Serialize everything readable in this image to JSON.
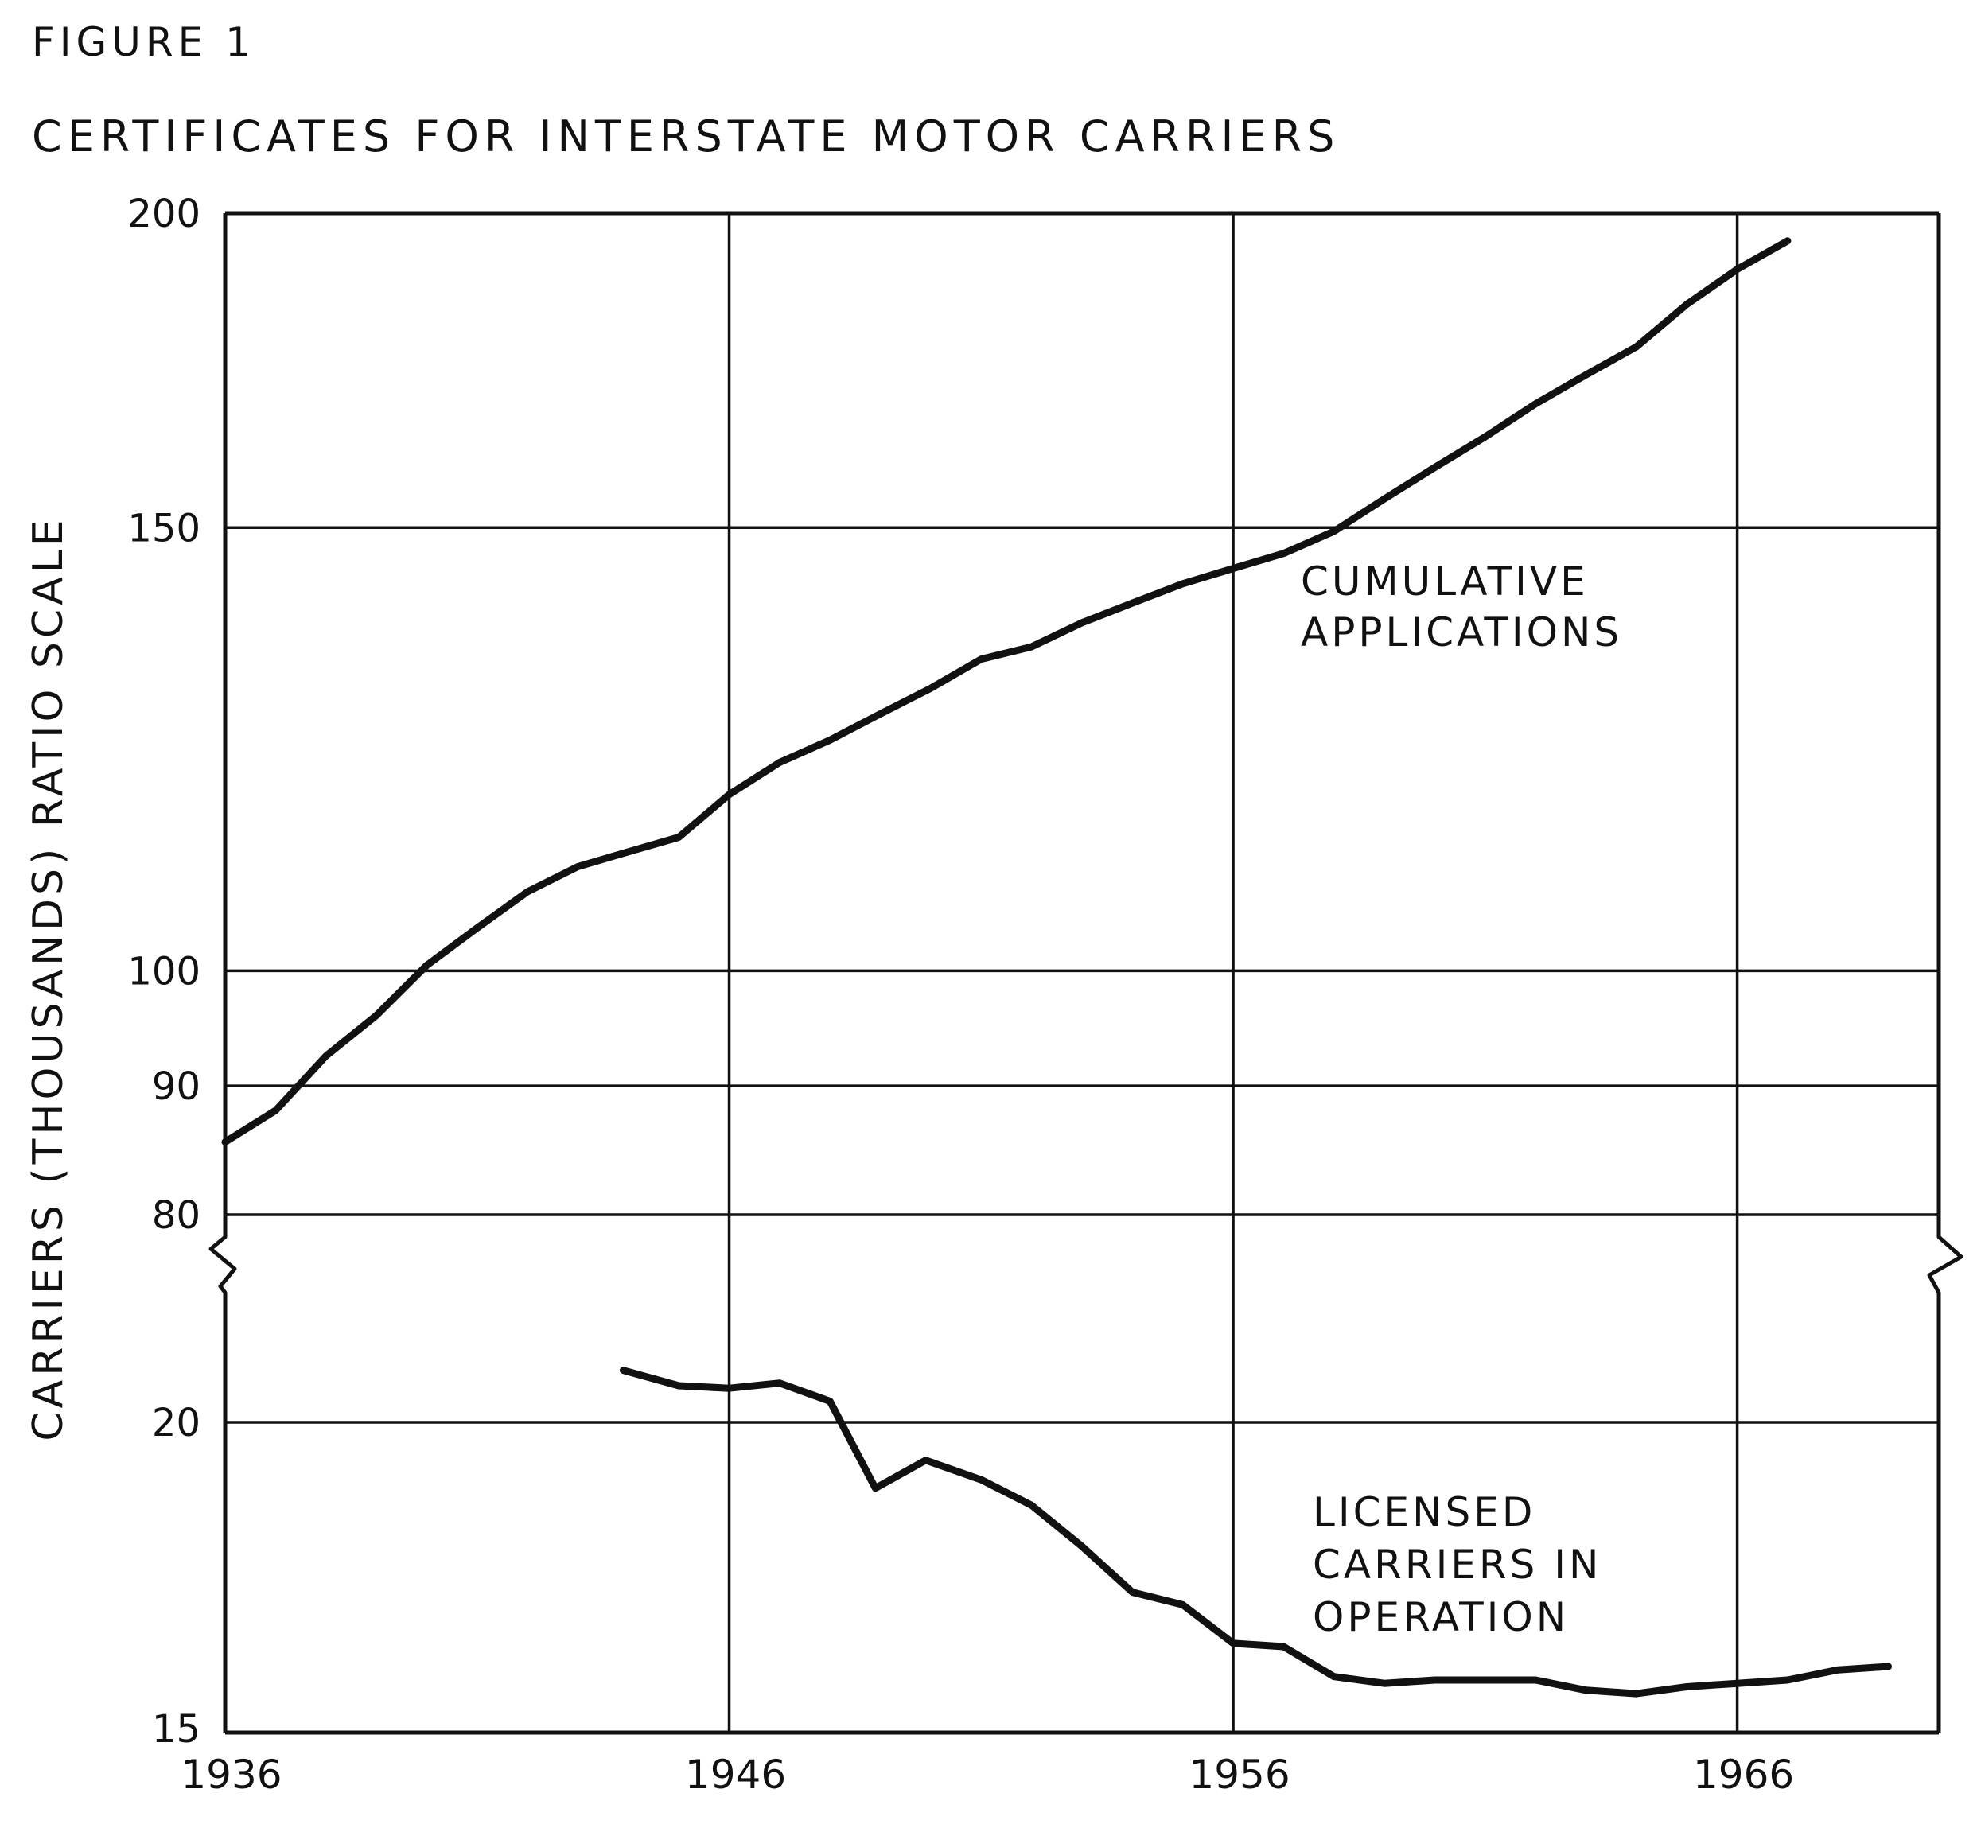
{
  "figure_label": "FIGURE 1",
  "title": "CERTIFICATES FOR INTERSTATE MOTOR CARRIERS",
  "chart_data": {
    "type": "line",
    "title": "CERTIFICATES FOR INTERSTATE MOTOR CARRIERS",
    "xlabel": "",
    "ylabel": "CARRIERS (THOUSANDS) RATIO SCALE",
    "y_scale": "log (ratio), broken axis between 80 and 20",
    "xlim": [
      1936,
      1970
    ],
    "x_ticks": [
      "1936",
      "1946",
      "1956",
      "1966"
    ],
    "y_ticks_upper": [
      "200",
      "150",
      "100",
      "90",
      "80"
    ],
    "y_ticks_lower": [
      "20",
      "15"
    ],
    "grid": true,
    "series": [
      {
        "name": "CUMULATIVE APPLICATIONS",
        "label_lines": [
          "CUMULATIVE",
          "APPLICATIONS"
        ],
        "panel": "upper",
        "points": [
          [
            1936,
            85.5
          ],
          [
            1937,
            88
          ],
          [
            1938,
            92.5
          ],
          [
            1939,
            96
          ],
          [
            1940,
            100.5
          ],
          [
            1941,
            104
          ],
          [
            1942,
            107.5
          ],
          [
            1943,
            110
          ],
          [
            1944,
            111.5
          ],
          [
            1945,
            113
          ],
          [
            1946,
            117.5
          ],
          [
            1947,
            121
          ],
          [
            1948,
            123.5
          ],
          [
            1949,
            126.5
          ],
          [
            1950,
            129.5
          ],
          [
            1951,
            133
          ],
          [
            1952,
            134.5
          ],
          [
            1953,
            137.5
          ],
          [
            1954,
            140
          ],
          [
            1955,
            142.5
          ],
          [
            1956,
            144.5
          ],
          [
            1957,
            146.5
          ],
          [
            1958,
            149.5
          ],
          [
            1959,
            154
          ],
          [
            1960,
            158.5
          ],
          [
            1961,
            163
          ],
          [
            1962,
            168
          ],
          [
            1963,
            172.5
          ],
          [
            1964,
            177
          ],
          [
            1965,
            184
          ],
          [
            1966,
            190
          ],
          [
            1967,
            195
          ]
        ]
      },
      {
        "name": "LICENSED CARRIERS IN OPERATION",
        "label_lines": [
          "LICENSED",
          "CARRIERS IN",
          "OPERATION"
        ],
        "panel": "lower",
        "points": [
          [
            1943.9,
            21.0
          ],
          [
            1945,
            20.7
          ],
          [
            1946,
            20.65
          ],
          [
            1947,
            20.75
          ],
          [
            1948,
            20.4
          ],
          [
            1948.9,
            18.8
          ],
          [
            1949.9,
            19.3
          ],
          [
            1951,
            18.95
          ],
          [
            1952,
            18.5
          ],
          [
            1953,
            17.8
          ],
          [
            1954,
            17.05
          ],
          [
            1955,
            16.85
          ],
          [
            1956,
            16.25
          ],
          [
            1957,
            16.2
          ],
          [
            1958,
            15.75
          ],
          [
            1959,
            15.65
          ],
          [
            1960,
            15.7
          ],
          [
            1961,
            15.7
          ],
          [
            1962,
            15.7
          ],
          [
            1963,
            15.55
          ],
          [
            1964,
            15.5
          ],
          [
            1965,
            15.6
          ],
          [
            1966,
            15.65
          ],
          [
            1967,
            15.7
          ],
          [
            1968,
            15.85
          ],
          [
            1969,
            15.9
          ]
        ]
      }
    ]
  },
  "colors": {
    "ink": "#111111",
    "background": "#ffffff"
  }
}
